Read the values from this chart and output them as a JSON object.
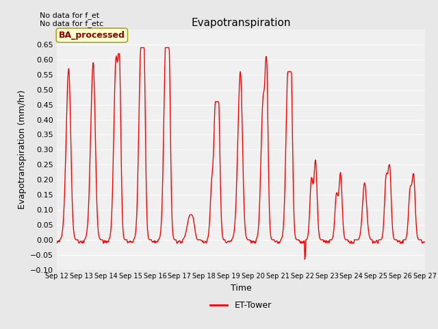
{
  "title": "Evapotranspiration",
  "ylabel": "Evapotranspiration (mm/hr)",
  "xlabel": "Time",
  "ylim": [
    -0.1,
    0.7
  ],
  "yticks": [
    -0.1,
    -0.05,
    0.0,
    0.05,
    0.1,
    0.15,
    0.2,
    0.25,
    0.3,
    0.35,
    0.4,
    0.45,
    0.5,
    0.55,
    0.6,
    0.65
  ],
  "line_color": "red",
  "line_width": 1.0,
  "bg_color": "#e8e8e8",
  "plot_bg_color": "#f0f0f0",
  "legend_label": "ET-Tower",
  "legend_box_label": "BA_processed",
  "annotation_lines": [
    "No data for f_et",
    "No data for f_etc"
  ],
  "x_tick_labels": [
    "Sep 12",
    "Sep 13",
    "Sep 14",
    "Sep 15",
    "Sep 16",
    "Sep 17",
    "Sep 18",
    "Sep 19",
    "Sep 20",
    "Sep 21",
    "Sep 22",
    "Sep 23",
    "Sep 24",
    "Sep 25",
    "Sep 26",
    "Sep 27"
  ],
  "x_tick_positions": [
    0,
    48,
    96,
    144,
    192,
    240,
    288,
    336,
    384,
    432,
    480,
    528,
    576,
    624,
    672,
    720
  ]
}
